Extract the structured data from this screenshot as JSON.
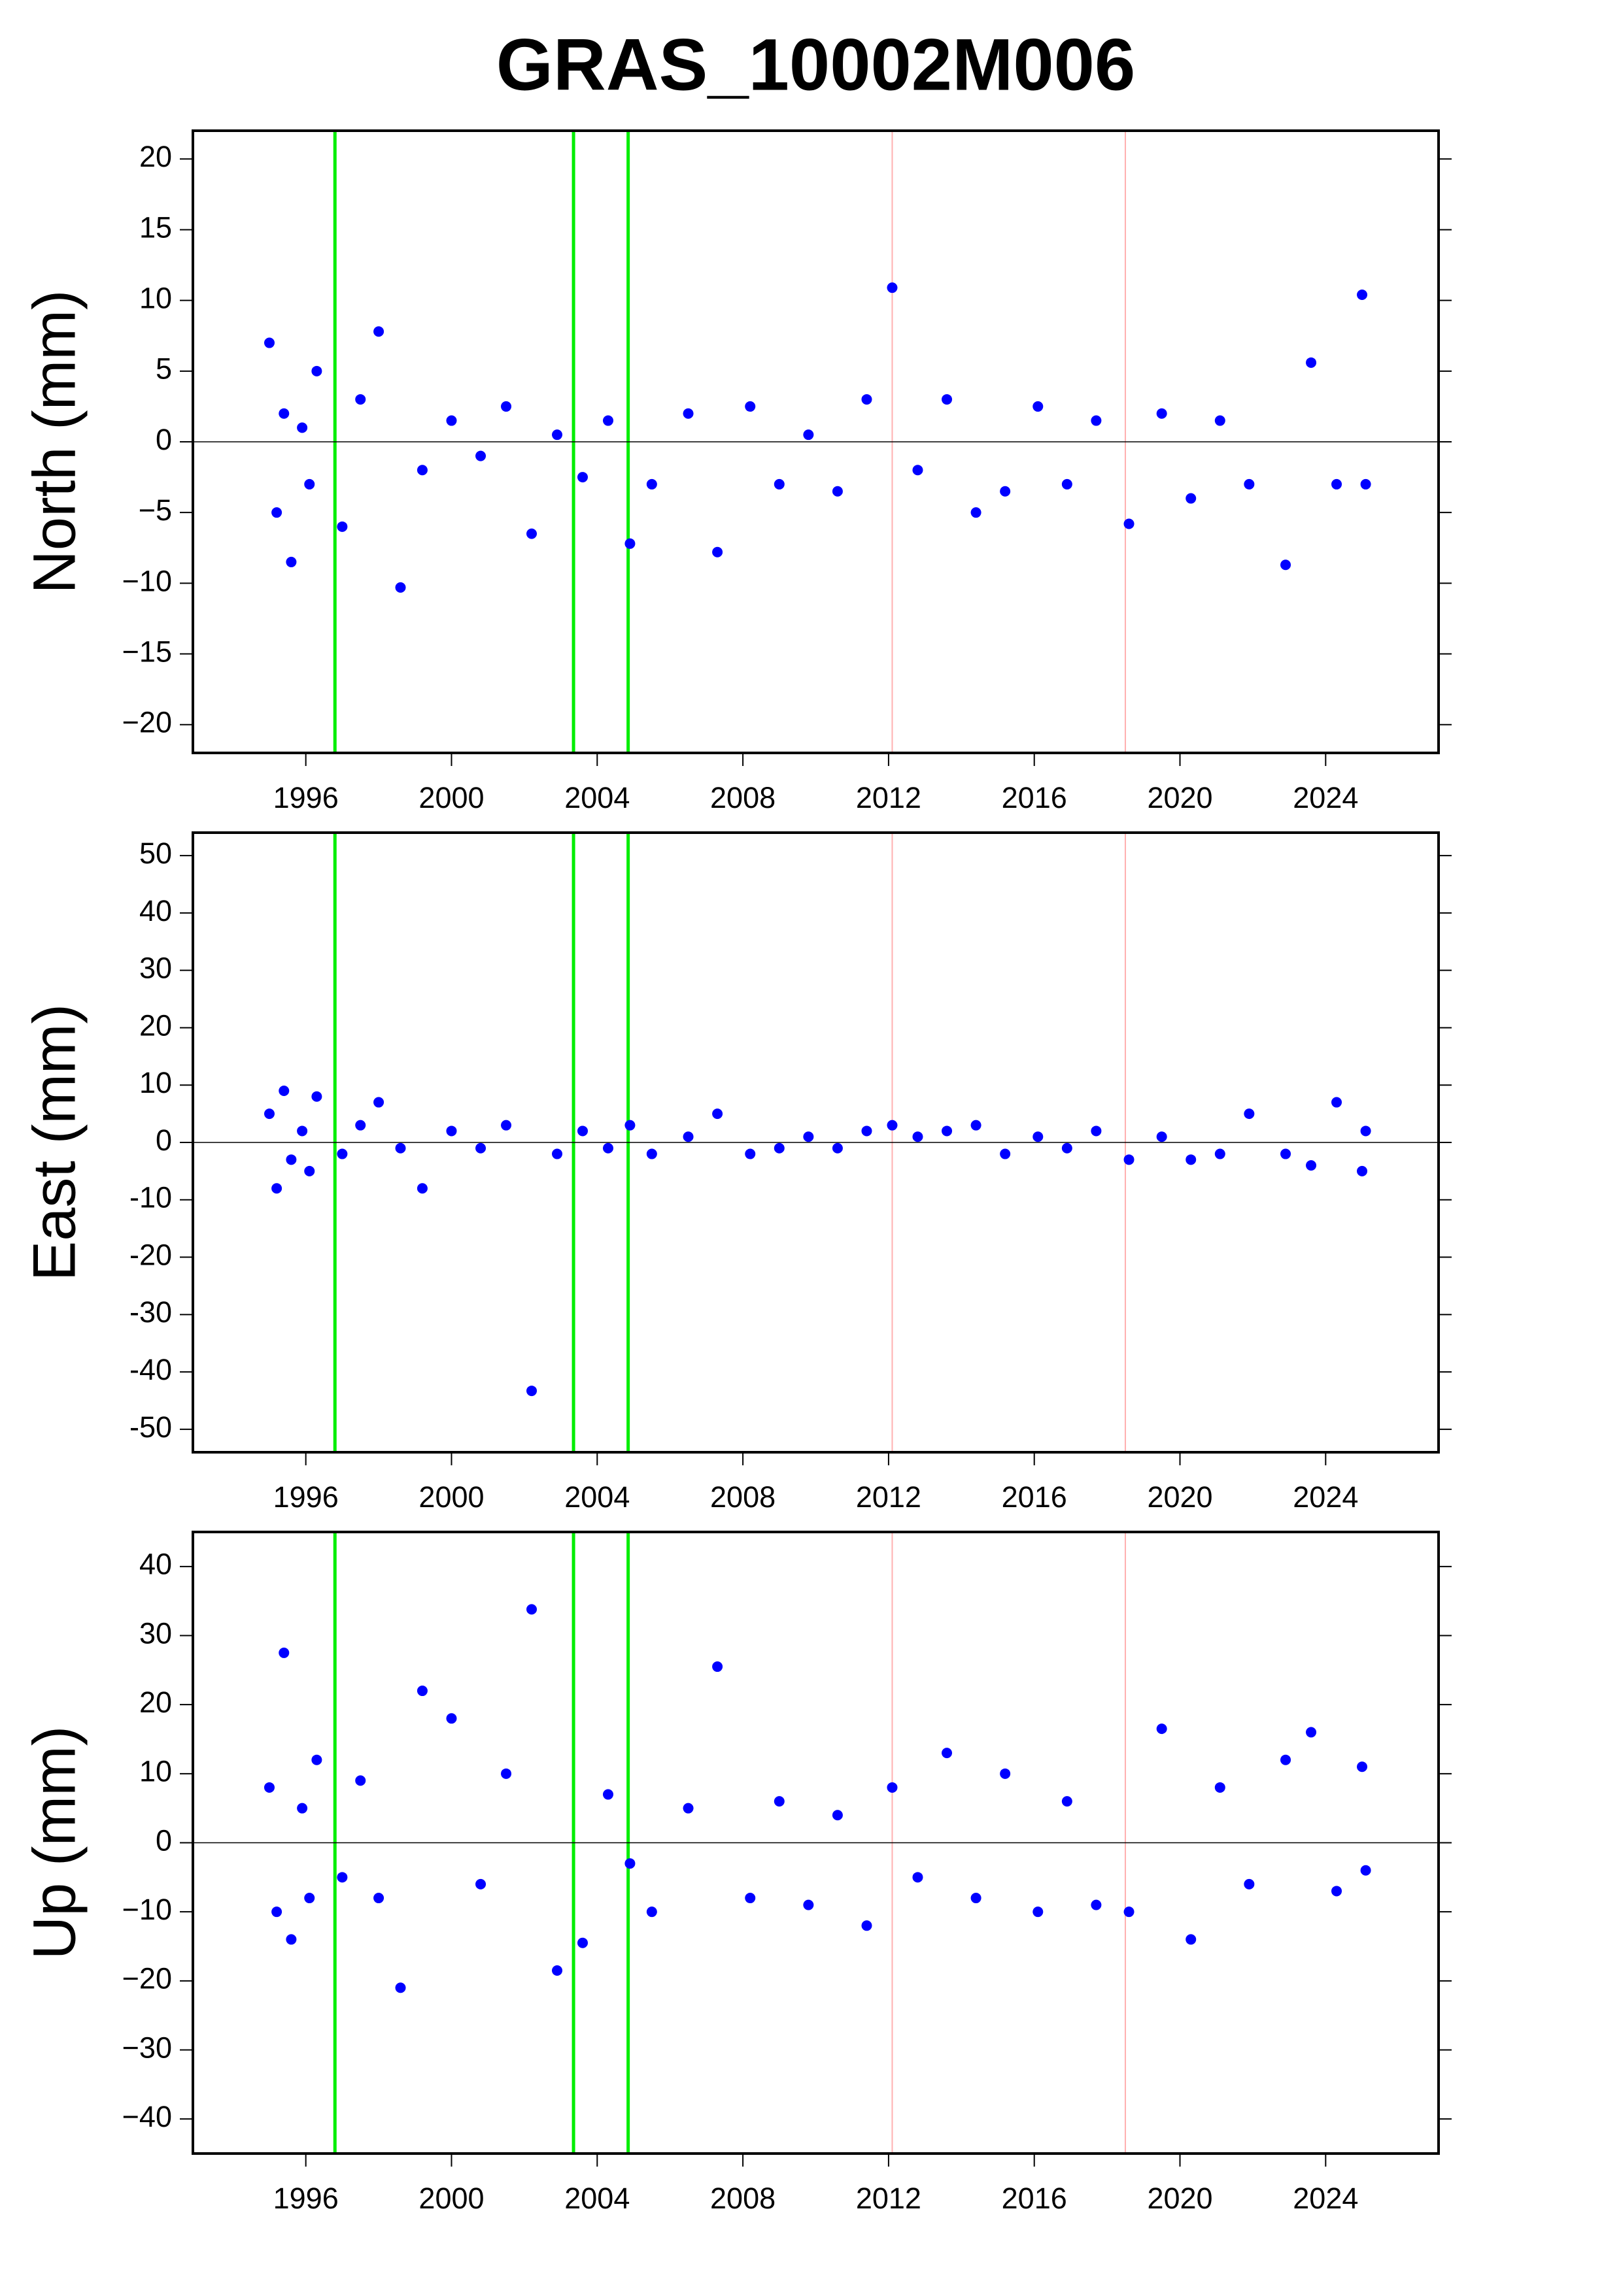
{
  "chart_data": [
    {
      "type": "scatter",
      "title": "GRAS_10002M006",
      "ylabel": "North (mm)",
      "color": "#0000ff",
      "x": [
        1995.0,
        1995.2,
        1995.4,
        1995.6,
        1995.9,
        1996.1,
        1996.3,
        1997.0,
        1997.5,
        1998.0,
        1998.6,
        1999.2,
        2000.0,
        2000.8,
        2001.5,
        2002.2,
        2002.9,
        2003.6,
        2004.3,
        2004.9,
        2005.5,
        2006.5,
        2007.3,
        2008.2,
        2009.0,
        2009.8,
        2010.6,
        2011.4,
        2012.1,
        2012.8,
        2013.6,
        2014.4,
        2015.2,
        2016.1,
        2016.9,
        2017.7,
        2018.6,
        2019.5,
        2020.3,
        2021.1,
        2021.9,
        2022.9,
        2023.6,
        2024.3,
        2025.0,
        2025.1
      ],
      "values": [
        7.0,
        -5.0,
        2.0,
        -8.5,
        1.0,
        -3.0,
        5.0,
        -6.0,
        3.0,
        7.8,
        -10.3,
        -2.0,
        1.5,
        -1.0,
        2.5,
        -6.5,
        0.5,
        -2.5,
        1.5,
        -7.2,
        -3.0,
        2.0,
        -7.8,
        2.5,
        -3.0,
        0.5,
        -3.5,
        3.0,
        10.9,
        -2.0,
        3.0,
        -5.0,
        -3.5,
        2.5,
        -3.0,
        1.5,
        -5.8,
        2.0,
        -4.0,
        1.5,
        -3.0,
        -8.7,
        5.6,
        -3.0,
        10.4,
        -3.0
      ],
      "breaks": [
        {
          "x": 1996.8,
          "color": "#00ee00"
        },
        {
          "x": 2003.35,
          "color": "#00ee00"
        },
        {
          "x": 2004.85,
          "color": "#00ee00"
        },
        {
          "x": 2012.1,
          "color": "#ffb0b0"
        },
        {
          "x": 2018.5,
          "color": "#ffb0b0"
        }
      ],
      "xlim": [
        1992.9,
        2027.1
      ],
      "xticks": [
        1996,
        2000,
        2004,
        2008,
        2012,
        2016,
        2020,
        2024
      ],
      "ylim": [
        -22,
        22
      ],
      "yticks": [
        {
          "value": -20,
          "label": "−20"
        },
        {
          "value": -15,
          "label": "−15"
        },
        {
          "value": -10,
          "label": "−10"
        },
        {
          "value": -5,
          "label": "−5"
        },
        0,
        5,
        10,
        15,
        20
      ]
    },
    {
      "type": "scatter",
      "ylabel": "East (mm)",
      "color": "#0000ff",
      "x": [
        1995.0,
        1995.2,
        1995.4,
        1995.6,
        1995.9,
        1996.1,
        1996.3,
        1997.0,
        1997.5,
        1998.0,
        1998.6,
        1999.2,
        2000.0,
        2000.8,
        2001.5,
        2002.2,
        2002.9,
        2003.6,
        2004.3,
        2004.9,
        2005.5,
        2006.5,
        2007.3,
        2008.2,
        2009.0,
        2009.8,
        2010.6,
        2011.4,
        2012.1,
        2012.8,
        2013.6,
        2014.4,
        2015.2,
        2016.1,
        2016.9,
        2017.7,
        2018.6,
        2019.5,
        2020.3,
        2021.1,
        2021.9,
        2022.9,
        2023.6,
        2024.3,
        2025.0,
        2025.1
      ],
      "values": [
        5,
        -8,
        9,
        -3,
        2,
        -5,
        8,
        -2,
        3,
        7,
        -1,
        -8,
        2,
        -1,
        3,
        -43.3,
        -2,
        2,
        -1,
        3,
        -2,
        1,
        5,
        -2,
        -1,
        1,
        -1,
        2,
        3,
        1,
        2,
        3,
        -2,
        1,
        -1,
        2,
        -3,
        1,
        -3,
        -2,
        5,
        -2,
        -4,
        7,
        -5,
        2
      ],
      "breaks": [
        {
          "x": 1996.8,
          "color": "#00ee00"
        },
        {
          "x": 2003.35,
          "color": "#00ee00"
        },
        {
          "x": 2004.85,
          "color": "#00ee00"
        },
        {
          "x": 2012.1,
          "color": "#ffb0b0"
        },
        {
          "x": 2018.5,
          "color": "#ffb0b0"
        }
      ],
      "xlim": [
        1992.9,
        2027.1
      ],
      "xticks": [
        1996,
        2000,
        2004,
        2008,
        2012,
        2016,
        2020,
        2024
      ],
      "ylim": [
        -54,
        54
      ],
      "yticks": [
        -50,
        -40,
        -30,
        -20,
        -10,
        0,
        10,
        20,
        30,
        40,
        50
      ]
    },
    {
      "type": "scatter",
      "ylabel": "Up (mm)",
      "color": "#0000ff",
      "x": [
        1995.0,
        1995.2,
        1995.4,
        1995.6,
        1995.9,
        1996.1,
        1996.3,
        1997.0,
        1997.5,
        1998.0,
        1998.6,
        1999.2,
        2000.0,
        2000.8,
        2001.5,
        2002.2,
        2002.9,
        2003.6,
        2004.3,
        2004.9,
        2005.5,
        2006.5,
        2007.3,
        2008.2,
        2009.0,
        2009.8,
        2010.6,
        2011.4,
        2012.1,
        2012.8,
        2013.6,
        2014.4,
        2015.2,
        2016.1,
        2016.9,
        2017.7,
        2018.6,
        2019.5,
        2020.3,
        2021.1,
        2021.9,
        2022.9,
        2023.6,
        2024.3,
        2025.0,
        2025.1
      ],
      "values": [
        8,
        -10,
        27.5,
        -14,
        5,
        -8,
        12,
        -5,
        9,
        -8,
        -21,
        22,
        18,
        -6,
        10,
        33.8,
        -18.5,
        -14.5,
        7,
        -3,
        -10,
        5,
        25.5,
        -8,
        6,
        -9,
        4,
        -12,
        8,
        -5,
        13,
        -8,
        10,
        -10,
        6,
        -9,
        -10,
        16.5,
        -14,
        8,
        -6,
        12,
        16,
        -7,
        11,
        -4
      ],
      "breaks": [
        {
          "x": 1996.8,
          "color": "#00ee00"
        },
        {
          "x": 2003.35,
          "color": "#00ee00"
        },
        {
          "x": 2004.85,
          "color": "#00ee00"
        },
        {
          "x": 2012.1,
          "color": "#ffb0b0"
        },
        {
          "x": 2018.5,
          "color": "#ffb0b0"
        }
      ],
      "xlim": [
        1992.9,
        2027.1
      ],
      "xticks": [
        1996,
        2000,
        2004,
        2008,
        2012,
        2016,
        2020,
        2024
      ],
      "ylim": [
        -45,
        45
      ],
      "yticks": [
        {
          "value": -40,
          "label": "−40"
        },
        {
          "value": -30,
          "label": "−30"
        },
        {
          "value": -20,
          "label": "−20"
        },
        {
          "value": -10,
          "label": "−10"
        },
        0,
        10,
        20,
        30,
        40
      ]
    }
  ]
}
